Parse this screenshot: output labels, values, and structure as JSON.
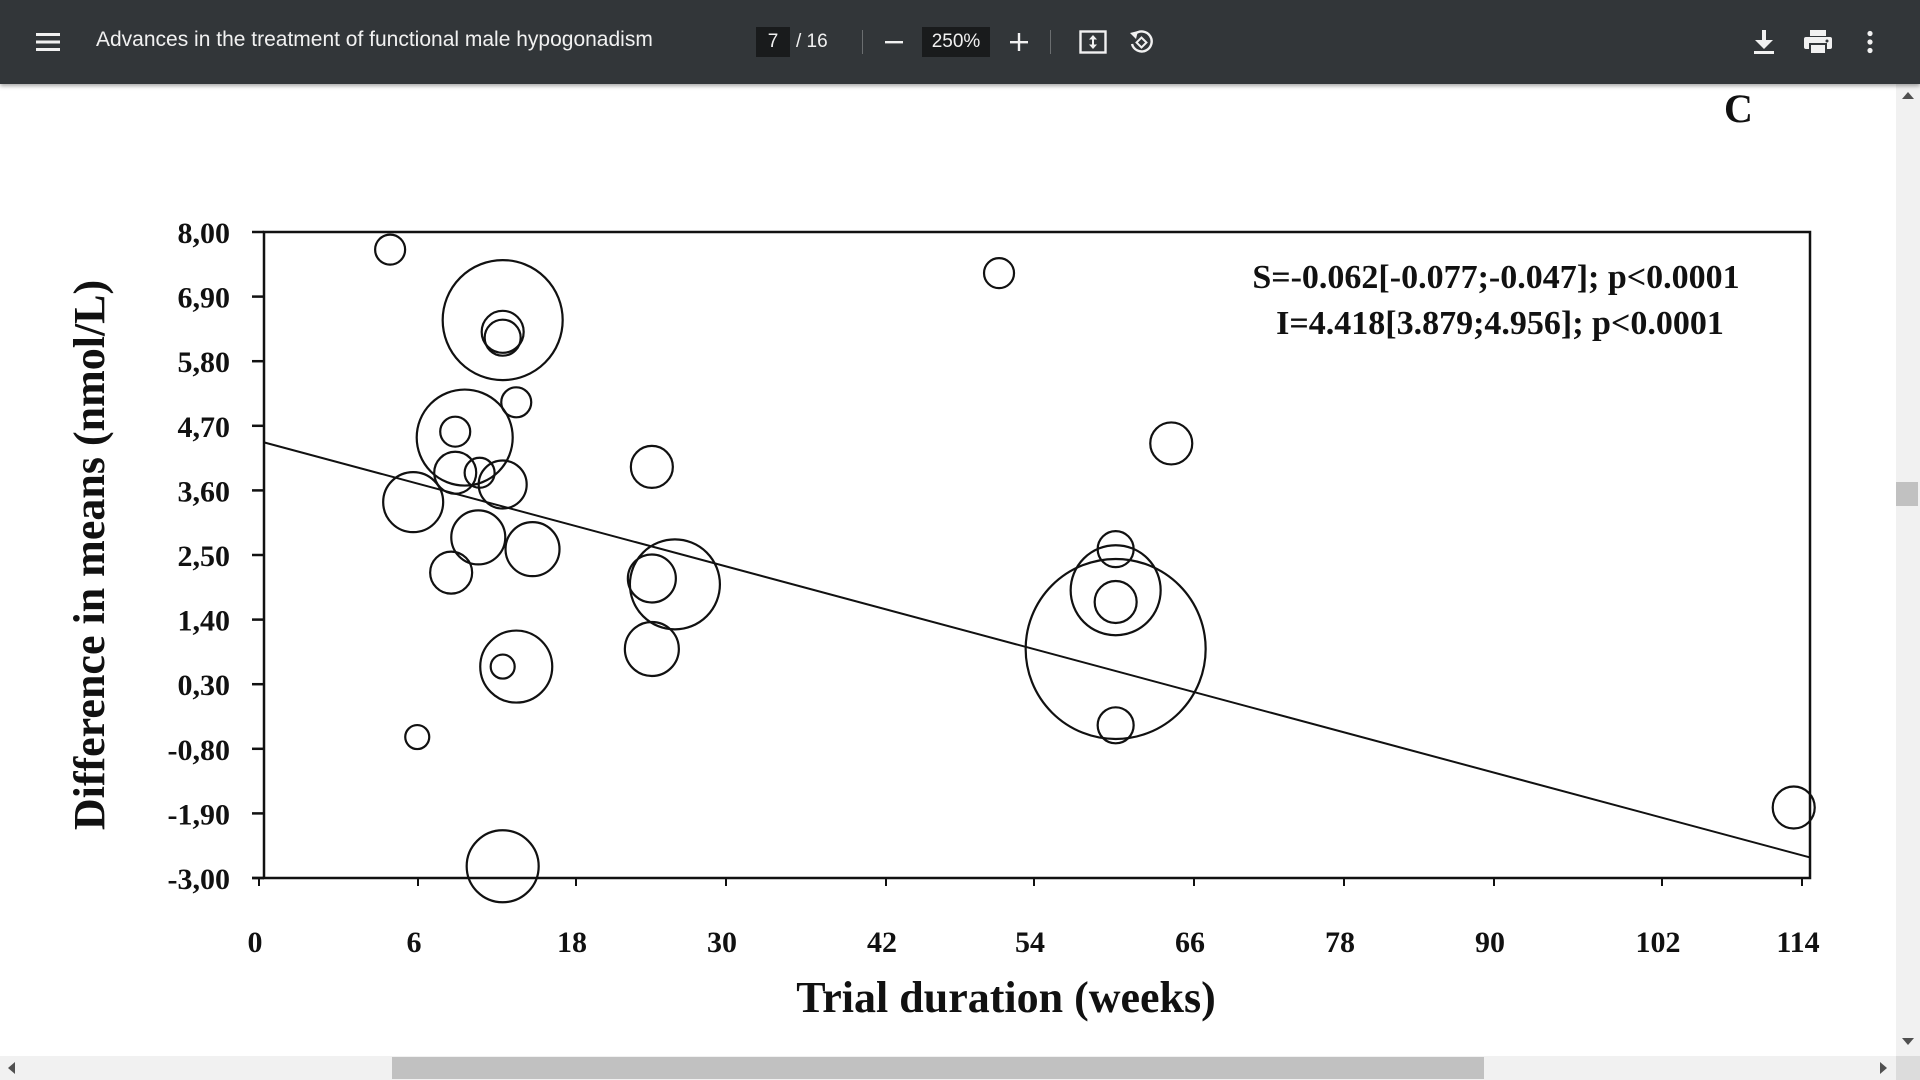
{
  "toolbar": {
    "doc_title": "Advances in the treatment of functional male hypogonadism",
    "page_current": "7",
    "page_total": "/ 16",
    "zoom": "250%",
    "icons": [
      "menu-icon",
      "minus-icon",
      "plus-icon",
      "fit-to-page-icon",
      "rotate-icon",
      "download-icon",
      "print-icon",
      "more-vert-icon"
    ]
  },
  "colors": {
    "toolbar_bg": "#323639",
    "toolbar_text": "#f1f1f1",
    "page_bg": "#ffffff",
    "ink": "#111111",
    "scrollbar_track": "#f1f1f1",
    "scrollbar_thumb": "#c1c1c1"
  },
  "chart_data": {
    "type": "scatter",
    "panel_label": "C",
    "xlabel": "Trial duration (weeks)",
    "ylabel": "Difference in means (nmol/L)",
    "xlim": [
      0,
      114
    ],
    "ylim": [
      -3.0,
      8.0
    ],
    "x_ticks": [
      0,
      6,
      18,
      30,
      42,
      54,
      66,
      78,
      90,
      102,
      114
    ],
    "x_tick_labels": [
      "0",
      "6",
      "18",
      "30",
      "42",
      "54",
      "66",
      "78",
      "90",
      "102",
      "114"
    ],
    "y_ticks": [
      8.0,
      6.9,
      5.8,
      4.7,
      3.6,
      2.5,
      1.4,
      0.3,
      -0.8,
      -1.9,
      -3.0
    ],
    "y_tick_labels": [
      "8,00",
      "6,90",
      "5,80",
      "4,70",
      "3,60",
      "2,50",
      "1,40",
      "0,30",
      "-0,80",
      "-1,90",
      "-3,00"
    ],
    "grid": false,
    "annotations": [
      "S=-0.062[-0.077;-0.047]; p<0.0001",
      "I=4.418[3.879;4.956]; p<0.0001"
    ],
    "regression_line": {
      "slope": -0.062,
      "intercept": 4.418
    },
    "points": [
      {
        "x": 9.3,
        "y": 7.7,
        "size": 3
      },
      {
        "x": 17.6,
        "y": 6.5,
        "size": 18
      },
      {
        "x": 17.6,
        "y": 6.3,
        "size": 5
      },
      {
        "x": 17.6,
        "y": 6.2,
        "size": 4
      },
      {
        "x": 18.6,
        "y": 5.1,
        "size": 3
      },
      {
        "x": 14.8,
        "y": 4.5,
        "size": 14
      },
      {
        "x": 14.1,
        "y": 4.6,
        "size": 3
      },
      {
        "x": 14.1,
        "y": 3.9,
        "size": 5
      },
      {
        "x": 15.9,
        "y": 3.9,
        "size": 3
      },
      {
        "x": 17.6,
        "y": 3.7,
        "size": 6
      },
      {
        "x": 11.0,
        "y": 3.4,
        "size": 8
      },
      {
        "x": 15.8,
        "y": 2.8,
        "size": 7
      },
      {
        "x": 19.8,
        "y": 2.6,
        "size": 7
      },
      {
        "x": 13.8,
        "y": 2.2,
        "size": 5
      },
      {
        "x": 28.6,
        "y": 4.0,
        "size": 5
      },
      {
        "x": 30.3,
        "y": 2.0,
        "size": 13
      },
      {
        "x": 28.6,
        "y": 2.1,
        "size": 6
      },
      {
        "x": 28.6,
        "y": 0.9,
        "size": 7
      },
      {
        "x": 18.6,
        "y": 0.6,
        "size": 10
      },
      {
        "x": 17.6,
        "y": 0.6,
        "size": 2
      },
      {
        "x": 11.3,
        "y": -0.6,
        "size": 2
      },
      {
        "x": 17.6,
        "y": -2.8,
        "size": 10
      },
      {
        "x": 54.2,
        "y": 7.3,
        "size": 3
      },
      {
        "x": 66.9,
        "y": 4.4,
        "size": 5
      },
      {
        "x": 62.8,
        "y": 2.6,
        "size": 4
      },
      {
        "x": 62.8,
        "y": 1.9,
        "size": 13
      },
      {
        "x": 62.8,
        "y": 1.7,
        "size": 5
      },
      {
        "x": 62.8,
        "y": 0.9,
        "size": 28
      },
      {
        "x": 62.8,
        "y": -0.4,
        "size": 4
      },
      {
        "x": 112.8,
        "y": -1.8,
        "size": 5
      }
    ]
  }
}
